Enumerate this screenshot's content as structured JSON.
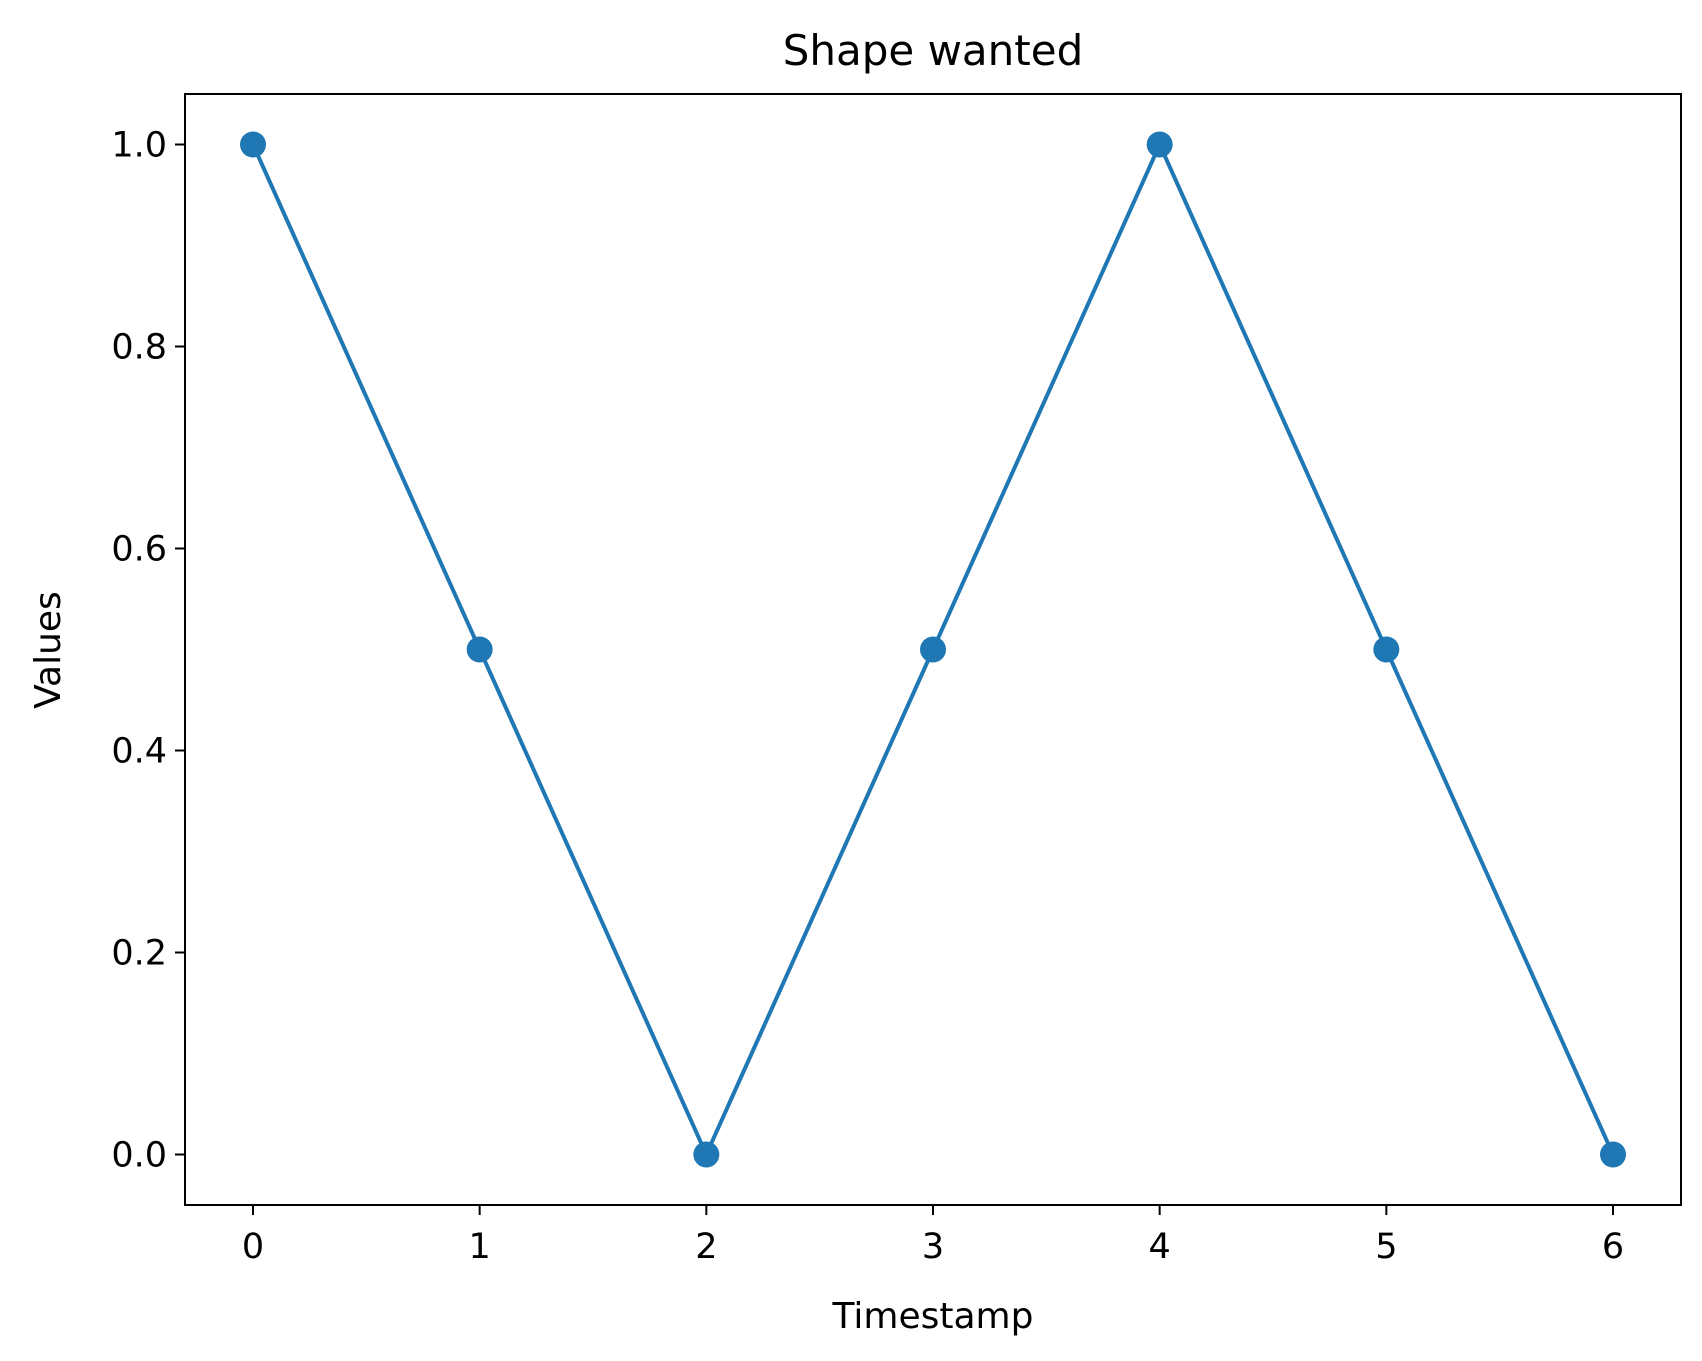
{
  "chart_data": {
    "type": "line",
    "title": "Shape wanted",
    "xlabel": "Timestamp",
    "ylabel": "Values",
    "x": [
      0,
      1,
      2,
      3,
      4,
      5,
      6
    ],
    "series": [
      {
        "values": [
          1.0,
          0.5,
          0.0,
          0.5,
          1.0,
          0.5,
          0.0
        ],
        "color": "#1f77b4",
        "marker": "circle"
      }
    ],
    "xlim": [
      -0.3,
      6.3
    ],
    "ylim": [
      -0.05,
      1.05
    ],
    "xticks": [
      "0",
      "1",
      "2",
      "3",
      "4",
      "5",
      "6"
    ],
    "yticks": [
      "0.0",
      "0.2",
      "0.4",
      "0.6",
      "0.8",
      "1.0"
    ],
    "grid": false,
    "legend": null
  }
}
